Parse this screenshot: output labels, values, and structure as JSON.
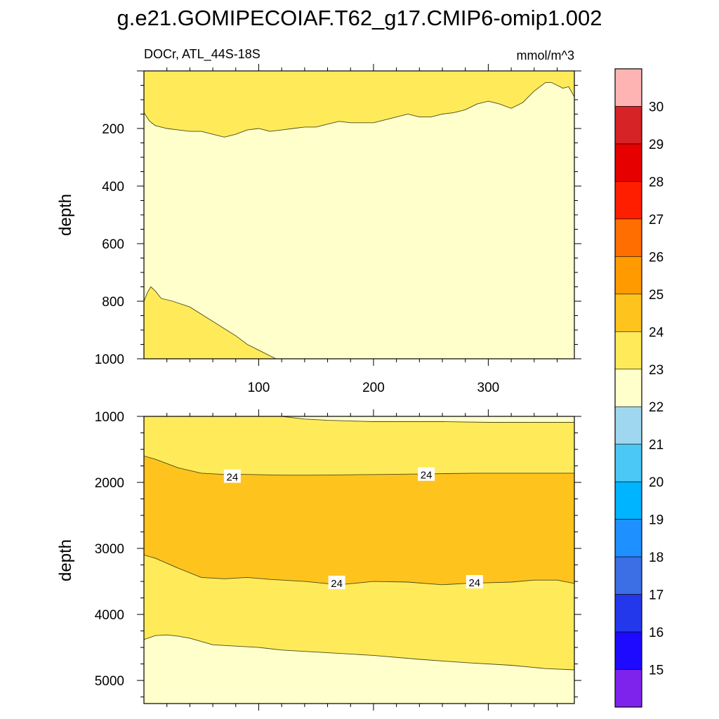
{
  "title": "g.e21.GOMIPECOIAF.T62_g17.CMIP6-omip1.002",
  "colors": {
    "frame": "#000000",
    "contour_line": "#4a4a1a",
    "label_bg": "#ffffff"
  },
  "chart_data": [
    {
      "type": "contour",
      "panel": "upper",
      "left_label": "DOCr, ATL_44S-18S",
      "right_label": "mmol/m^3",
      "ylabel": "depth",
      "xlabel": "",
      "xlim": [
        0,
        375
      ],
      "ylim": [
        1000,
        0
      ],
      "x_ticks": [
        "100",
        "200",
        "300"
      ],
      "x_tick_values": [
        100,
        200,
        300
      ],
      "y_ticks": [
        "200",
        "400",
        "600",
        "800",
        "1000"
      ],
      "y_tick_values": [
        200,
        400,
        600,
        800,
        1000
      ],
      "background_fill": "#ffffcc",
      "regions": [
        {
          "range": "23-24",
          "fill": "#ffeb5a",
          "boundary_x": [
            0,
            5,
            10,
            20,
            30,
            40,
            50,
            60,
            70,
            80,
            90,
            100,
            110,
            120,
            130,
            140,
            150,
            160,
            170,
            180,
            190,
            200,
            210,
            220,
            230,
            240,
            250,
            260,
            270,
            280,
            290,
            300,
            310,
            320,
            330,
            340,
            350,
            355,
            360,
            365,
            370,
            375
          ],
          "boundary_depth": [
            145,
            175,
            190,
            200,
            205,
            210,
            210,
            220,
            230,
            220,
            205,
            200,
            210,
            205,
            200,
            195,
            195,
            185,
            175,
            180,
            180,
            180,
            170,
            160,
            150,
            160,
            160,
            150,
            145,
            135,
            115,
            105,
            115,
            130,
            110,
            70,
            40,
            40,
            50,
            60,
            55,
            90
          ],
          "side": "above"
        },
        {
          "range": "23-24",
          "fill": "#ffeb5a",
          "boundary_x": [
            0,
            3,
            6,
            10,
            15,
            25,
            40,
            60,
            80,
            90,
            100,
            110,
            115
          ],
          "boundary_depth": [
            800,
            770,
            750,
            765,
            790,
            800,
            820,
            870,
            920,
            950,
            970,
            990,
            1000
          ],
          "side": "below"
        }
      ]
    },
    {
      "type": "contour",
      "panel": "lower",
      "ylabel": "depth",
      "xlabel": "",
      "xlim": [
        0,
        375
      ],
      "ylim": [
        5350,
        1000
      ],
      "y_ticks": [
        "1000",
        "2000",
        "3000",
        "4000",
        "5000"
      ],
      "y_tick_values": [
        1000,
        2000,
        3000,
        4000,
        5000
      ],
      "x_tick_values": [
        100,
        200,
        300
      ],
      "bands": [
        {
          "range": "22-23",
          "fill": "#ffffcc",
          "top_x": [
            0,
            10,
            20,
            30,
            40,
            60,
            80,
            100,
            120,
            160,
            200,
            240,
            280,
            320,
            360,
            375
          ],
          "top_depth": [
            1000,
            1000,
            1000,
            1000,
            1000,
            1000,
            1000,
            1000,
            1000,
            1000,
            1000,
            1000,
            1000,
            1000,
            1000,
            1000
          ]
        },
        {
          "range": "23-24",
          "fill": "#ffeb5a",
          "top_x": [
            0,
            40,
            80,
            100,
            120,
            125,
            130,
            140,
            160,
            180,
            200,
            230,
            260,
            300,
            340,
            375
          ],
          "top_depth": [
            1000,
            1000,
            1000,
            1000,
            1000,
            1010,
            1020,
            1040,
            1060,
            1070,
            1080,
            1080,
            1080,
            1090,
            1090,
            1090
          ]
        },
        {
          "range": "24-25",
          "fill": "#ffc31e",
          "top_x": [
            0,
            10,
            30,
            50,
            70,
            90,
            120,
            150,
            180,
            210,
            250,
            290,
            330,
            375
          ],
          "top_depth": [
            1600,
            1650,
            1780,
            1860,
            1880,
            1880,
            1890,
            1890,
            1885,
            1880,
            1870,
            1860,
            1860,
            1860
          ]
        },
        {
          "range": "23-24",
          "fill": "#ffeb5a",
          "top_x": [
            0,
            10,
            30,
            50,
            70,
            90,
            110,
            140,
            170,
            200,
            230,
            260,
            280,
            300,
            320,
            340,
            360,
            375
          ],
          "top_depth": [
            3100,
            3150,
            3300,
            3440,
            3460,
            3440,
            3470,
            3500,
            3550,
            3500,
            3510,
            3550,
            3530,
            3520,
            3510,
            3480,
            3480,
            3530
          ]
        },
        {
          "range": "22-23",
          "fill": "#ffffcc",
          "top_x": [
            0,
            10,
            20,
            30,
            40,
            60,
            80,
            100,
            120,
            160,
            200,
            240,
            280,
            320,
            350,
            375
          ],
          "top_depth": [
            4380,
            4320,
            4310,
            4330,
            4360,
            4460,
            4480,
            4500,
            4540,
            4580,
            4620,
            4680,
            4730,
            4770,
            4820,
            4840
          ]
        }
      ],
      "contour_labels": [
        {
          "text": "24",
          "x": 77,
          "depth": 1910
        },
        {
          "text": "24",
          "x": 246,
          "depth": 1880
        },
        {
          "text": "24",
          "x": 168,
          "depth": 3520
        },
        {
          "text": "24",
          "x": 288,
          "depth": 3510
        }
      ]
    },
    {
      "type": "colorbar",
      "labels": [
        "30",
        "29",
        "28",
        "27",
        "26",
        "25",
        "24",
        "23",
        "22",
        "21",
        "20",
        "19",
        "18",
        "17",
        "16",
        "15"
      ],
      "colors_top_to_bottom": [
        "#ffb4b4",
        "#d62326",
        "#e60000",
        "#ff1e00",
        "#ff6e00",
        "#ff9b00",
        "#ffc31e",
        "#ffeb5a",
        "#ffffcc",
        "#a0d7f0",
        "#4bc8f5",
        "#00b4ff",
        "#1e90ff",
        "#3c6ee6",
        "#2337eb",
        "#1e0aff",
        "#7d23eb"
      ]
    }
  ]
}
